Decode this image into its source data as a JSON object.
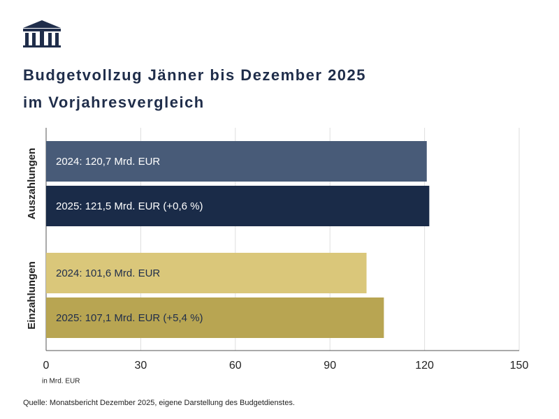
{
  "chart_data": {
    "type": "bar",
    "orientation": "horizontal",
    "title": [
      "Budgetvollzug Jänner bis Dezember 2025",
      "im Vorjahresvergleich"
    ],
    "categories": [
      "Auszahlungen",
      "Einzahlungen"
    ],
    "series": [
      {
        "colors": [
          "#485b78",
          "#dac77a"
        ],
        "label_colors": [
          "#ffffff",
          "#1f2d4a"
        ],
        "values": [
          120.7,
          101.6
        ],
        "value_labels": [
          "2024: 120,7 Mrd. EUR",
          "2024: 101,6 Mrd. EUR"
        ]
      },
      {
        "colors": [
          "#1a2b48",
          "#b8a552"
        ],
        "label_colors": [
          "#ffffff",
          "#1f2d4a"
        ],
        "values": [
          121.5,
          107.1
        ],
        "value_labels": [
          "2025: 121,5 Mrd. EUR (+0,6 %)",
          "2025: 107,1 Mrd. EUR (+5,4 %)"
        ]
      }
    ],
    "xlim": [
      0,
      150
    ],
    "xticks": [
      0,
      30,
      60,
      90,
      120,
      150
    ],
    "x_label": "in Mrd. EUR",
    "grid": true,
    "source": "Quelle: Monatsbericht Dezember 2025, eigene Darstellung des Budgetdienstes."
  }
}
